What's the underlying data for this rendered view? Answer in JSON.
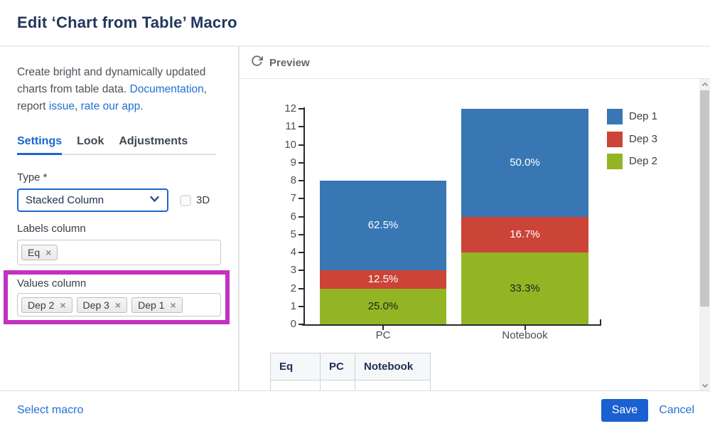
{
  "dialog": {
    "title": "Edit ‘Chart from Table’ Macro"
  },
  "description": {
    "text_before": "Create bright and dynamically updated charts from table data. ",
    "link_documentation": "Documentation",
    "text_mid1": ", report ",
    "link_issue": "issue",
    "text_mid2": ", ",
    "link_rate": "rate our app",
    "text_after": "."
  },
  "tabs": {
    "items": [
      {
        "label": "Settings",
        "active": true
      },
      {
        "label": "Look",
        "active": false
      },
      {
        "label": "Adjustments",
        "active": false
      }
    ]
  },
  "form": {
    "type_label": "Type *",
    "type_value": "Stacked Column",
    "checkbox_3d_label": "3D",
    "checkbox_3d_checked": false,
    "labels_column_label": "Labels column",
    "labels_tags": [
      "Eq"
    ],
    "values_column_label": "Values column",
    "values_tags": [
      "Dep 2",
      "Dep 3",
      "Dep 1"
    ],
    "tag_remove_glyph": "×",
    "highlight_color": "#c231c2"
  },
  "preview": {
    "title": "Preview",
    "table_headers": [
      "Eq",
      "PC",
      "Notebook"
    ]
  },
  "chart_data": {
    "type": "bar",
    "stacked": true,
    "categories": [
      "PC",
      "Notebook"
    ],
    "series": [
      {
        "name": "Dep 2",
        "color": "#94b523",
        "values": [
          2,
          4
        ],
        "percent_labels": [
          "25.0%",
          "33.3%"
        ],
        "label_color": "#222222"
      },
      {
        "name": "Dep 3",
        "color": "#cb4437",
        "values": [
          1,
          2
        ],
        "percent_labels": [
          "12.5%",
          "16.7%"
        ],
        "label_color": "#ffffff"
      },
      {
        "name": "Dep 1",
        "color": "#3876b4",
        "values": [
          5,
          6
        ],
        "percent_labels": [
          "62.5%",
          "50.0%"
        ],
        "label_color": "#ffffff"
      }
    ],
    "legend": [
      "Dep 1",
      "Dep 3",
      "Dep 2"
    ],
    "legend_position": "right",
    "ylim": [
      0,
      12
    ],
    "ytick_step": 1,
    "grid": false
  },
  "footer": {
    "select_macro_label": "Select macro",
    "save_label": "Save",
    "cancel_label": "Cancel"
  }
}
